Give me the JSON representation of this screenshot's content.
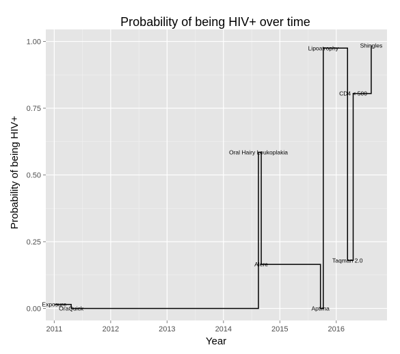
{
  "chart_data": {
    "type": "line",
    "step": true,
    "title": "Probability of being HIV+ over time",
    "xlabel": "Year",
    "ylabel": "Probability of being HIV+",
    "xlim": [
      2010.85,
      2016.9
    ],
    "ylim": [
      -0.045,
      1.045
    ],
    "x_ticks": [
      2011,
      2012,
      2013,
      2014,
      2015,
      2016
    ],
    "x_tick_labels": [
      "2011",
      "2012",
      "2013",
      "2014",
      "2015",
      "2016"
    ],
    "y_ticks": [
      0,
      0.25,
      0.5,
      0.75,
      1
    ],
    "y_tick_labels": [
      "0.00",
      "0.25",
      "0.50",
      "0.75",
      "1.00"
    ],
    "grid": true,
    "series": [
      {
        "color": "#000000",
        "points": [
          {
            "x": 2011.0,
            "y": 0.015,
            "label": "Exposure"
          },
          {
            "x": 2011.3,
            "y": 0.0,
            "label": "OraQuick"
          },
          {
            "x": 2014.62,
            "y": 0.585,
            "label": "Oral Hairy Leukoplakia"
          },
          {
            "x": 2014.67,
            "y": 0.165,
            "label": "Alere"
          },
          {
            "x": 2015.72,
            "y": 0.0,
            "label": "Aptima"
          },
          {
            "x": 2015.77,
            "y": 0.975,
            "label": "Lipoatrophy"
          },
          {
            "x": 2016.2,
            "y": 0.18,
            "label": "Taqman 2.0"
          },
          {
            "x": 2016.3,
            "y": 0.805,
            "label": "CD4 < 500"
          },
          {
            "x": 2016.62,
            "y": 0.985,
            "label": "Shingles"
          }
        ]
      }
    ]
  }
}
